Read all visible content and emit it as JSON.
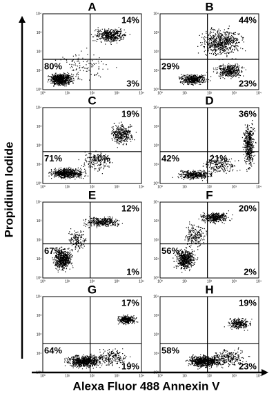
{
  "figure": {
    "y_axis_label": "Propidium Iodide",
    "x_axis_label": "Alexa Fluor 488 Annexin V",
    "tick_labels": [
      "10⁰",
      "10¹",
      "10²",
      "10³",
      "10⁴"
    ],
    "panels": [
      {
        "label": "A",
        "upper_right": "14%",
        "lower_left": "80%",
        "lower_right": "3%"
      },
      {
        "label": "B",
        "upper_right": "44%",
        "lower_left": "29%",
        "lower_right": "23%"
      },
      {
        "label": "C",
        "upper_right": "19%",
        "lower_left": "71%",
        "lower_right": "10%"
      },
      {
        "label": "D",
        "upper_right": "36%",
        "lower_left": "42%",
        "lower_right": "21%"
      },
      {
        "label": "E",
        "upper_right": "12%",
        "lower_left": "67%",
        "lower_right": "1%"
      },
      {
        "label": "F",
        "upper_right": "20%",
        "lower_left": "56%",
        "lower_right": "2%"
      },
      {
        "label": "G",
        "upper_right": "17%",
        "lower_left": "64%",
        "lower_right": "19%"
      },
      {
        "label": "H",
        "upper_right": "19%",
        "lower_left": "58%",
        "lower_right": "23%"
      }
    ]
  }
}
